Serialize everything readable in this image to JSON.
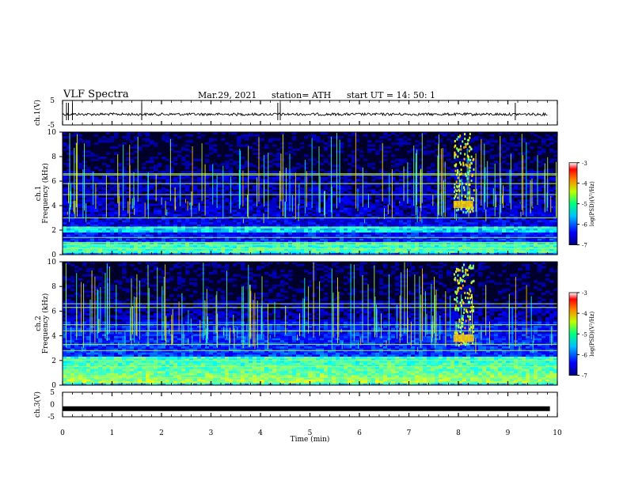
{
  "header": {
    "title": "VLF Spectra",
    "date": "Mar.29, 2021",
    "station": "station= ATH",
    "start_ut": "start  UT  =  14: 50: 1"
  },
  "chart_data": [
    {
      "type": "line",
      "panel": "ch1-waveform",
      "ylabel": "ch.1(V)",
      "yticks": [
        "5",
        "-5"
      ],
      "ylim": [
        -5,
        5
      ],
      "xlim": [
        0,
        10
      ],
      "description_values": {
        "baseline": 0,
        "noise_amplitude": 0.6
      },
      "spikes_x": [
        0.08,
        0.12,
        0.2,
        1.6,
        4.35,
        4.4,
        9.15
      ]
    },
    {
      "type": "heatmap",
      "panel": "ch1-spectrogram",
      "ylabel": "ch.1\nFrequency (kHz)",
      "xlim": [
        0,
        10
      ],
      "ylim": [
        0,
        10
      ],
      "yticks": [
        "0",
        "2",
        "4",
        "6",
        "8",
        "10"
      ],
      "colorbar": {
        "label": "log(PSD)(V²/Hz)",
        "ticks": [
          "-3",
          "-4",
          "-5",
          "-6",
          "-7"
        ],
        "range": [
          -7,
          -3
        ]
      },
      "features": {
        "bright_band_khz": [
          [
            0.2,
            1.0
          ],
          [
            1.8,
            2.3
          ]
        ],
        "lines_khz": [
          0.5,
          0.8,
          1.0,
          1.4,
          2.2,
          3.0,
          4.9,
          5.8,
          6.5,
          6.6
        ],
        "burst": {
          "x_min": [
            7.9,
            8.3
          ],
          "f_khz": [
            3.5,
            10
          ],
          "peak_khz": [
            3.8,
            4.4
          ]
        }
      }
    },
    {
      "type": "heatmap",
      "panel": "ch2-spectrogram",
      "ylabel": "ch.2\nFrequency (kHz)",
      "xlim": [
        0,
        10
      ],
      "ylim": [
        0,
        10
      ],
      "yticks": [
        "0",
        "2",
        "4",
        "6",
        "8",
        "10"
      ],
      "colorbar": {
        "label": "log(PSD)(V²/Hz)",
        "ticks": [
          "-3",
          "-4",
          "-5",
          "-6",
          "-7"
        ],
        "range": [
          -7,
          -3
        ]
      },
      "features": {
        "bright_band_khz": [
          [
            0.2,
            2.4
          ]
        ],
        "lines_khz": [
          0.6,
          1.5,
          2.0,
          2.8,
          3.3,
          4.4,
          4.9,
          6.3,
          6.6
        ],
        "burst": {
          "x_min": [
            7.9,
            8.3
          ],
          "f_khz": [
            3.3,
            10
          ],
          "peak_khz": [
            3.5,
            4.1
          ]
        }
      }
    },
    {
      "type": "line",
      "panel": "ch3-waveform",
      "ylabel": "ch.3(V)",
      "yticks": [
        "5",
        "0",
        "-5"
      ],
      "ylim": [
        -5,
        5
      ],
      "xlim": [
        0,
        10
      ],
      "description_values": {
        "constant_level": -1.7
      }
    }
  ],
  "xaxis": {
    "label": "Time  (min)",
    "ticks": [
      "0",
      "1",
      "2",
      "3",
      "4",
      "5",
      "6",
      "7",
      "8",
      "9",
      "10"
    ]
  },
  "colors": {
    "colormap": [
      "#00008f",
      "#0000ff",
      "#0080ff",
      "#00ffff",
      "#80ff80",
      "#ffff00",
      "#ff8000",
      "#ff0000",
      "#800000"
    ],
    "background_dark": "#000010",
    "trace": "#000000"
  }
}
